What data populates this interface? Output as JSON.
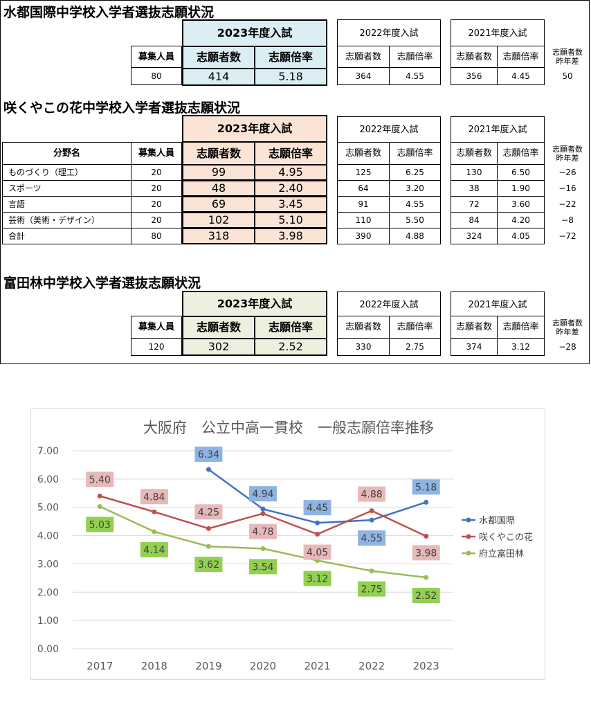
{
  "headers": {
    "y2023": "2023年度入試",
    "y2022": "2022年度入試",
    "y2021": "2021年度入試",
    "boshu": "募集人員",
    "shigansha": "志願者数",
    "bairitsu": "志願倍率",
    "diff_line1": "志願者数",
    "diff_line2": "昨年差",
    "bunya": "分野名"
  },
  "mizuto": {
    "title": "水都国際中学校入学者選抜志願状況",
    "row": {
      "boshu": "80",
      "c23": "414",
      "r23": "5.18",
      "c22": "364",
      "r22": "4.55",
      "c21": "356",
      "r21": "4.45",
      "diff": "50"
    }
  },
  "sakuya": {
    "title": "咲くやこの花中学校入学者選抜志願状況",
    "rows": [
      {
        "field": "ものづくり（理工）",
        "boshu": "20",
        "c23": "99",
        "r23": "4.95",
        "c22": "125",
        "r22": "6.25",
        "c21": "130",
        "r21": "6.50",
        "diff": "−26"
      },
      {
        "field": "スポーツ",
        "boshu": "20",
        "c23": "48",
        "r23": "2.40",
        "c22": "64",
        "r22": "3.20",
        "c21": "38",
        "r21": "1.90",
        "diff": "−16"
      },
      {
        "field": "言語",
        "boshu": "20",
        "c23": "69",
        "r23": "3.45",
        "c22": "91",
        "r22": "4.55",
        "c21": "72",
        "r21": "3.60",
        "diff": "−22"
      },
      {
        "field": "芸術（美術・デザイン）",
        "boshu": "20",
        "c23": "102",
        "r23": "5.10",
        "c22": "110",
        "r22": "5.50",
        "c21": "84",
        "r21": "4.20",
        "diff": "−8"
      },
      {
        "field": "合計",
        "boshu": "80",
        "c23": "318",
        "r23": "3.98",
        "c22": "390",
        "r22": "4.88",
        "c21": "324",
        "r21": "4.05",
        "diff": "−72"
      }
    ]
  },
  "tondabayashi": {
    "title": "富田林中学校入学者選抜志願状況",
    "row": {
      "boshu": "120",
      "c23": "302",
      "r23": "2.52",
      "c22": "330",
      "r22": "2.75",
      "c21": "374",
      "r21": "3.12",
      "diff": "−28"
    }
  },
  "chart_data": {
    "type": "line",
    "title": "大阪府　公立中高一貫校　一般志願倍率推移",
    "x": [
      "2017",
      "2018",
      "2019",
      "2020",
      "2021",
      "2022",
      "2023"
    ],
    "y_ticks": [
      "0.00",
      "1.00",
      "2.00",
      "3.00",
      "4.00",
      "5.00",
      "6.00",
      "7.00"
    ],
    "ylim": [
      0,
      7
    ],
    "grid": true,
    "legend_position": "right",
    "series": [
      {
        "name": "水都国際",
        "color": "#4472c4",
        "label_bg": "#8eb4e3",
        "values": [
          null,
          null,
          6.34,
          4.94,
          4.45,
          4.55,
          5.18
        ],
        "labels": [
          null,
          null,
          "6.34",
          "4.94",
          "4.45",
          "4.55",
          "5.18"
        ]
      },
      {
        "name": "咲くやこの花",
        "color": "#c0504d",
        "label_bg": "#e6b9b8",
        "values": [
          5.4,
          4.84,
          4.25,
          4.78,
          4.05,
          4.88,
          3.98
        ],
        "labels": [
          "5.40",
          "4.84",
          "4.25",
          "4.78",
          "4.05",
          "4.88",
          "3.98"
        ]
      },
      {
        "name": "府立富田林",
        "color": "#9bbb59",
        "label_bg": "#92d050",
        "values": [
          5.03,
          4.14,
          3.62,
          3.54,
          3.12,
          2.75,
          2.52
        ],
        "labels": [
          "5.03",
          "4.14",
          "3.62",
          "3.54",
          "3.12",
          "2.75",
          "2.52"
        ]
      }
    ]
  }
}
